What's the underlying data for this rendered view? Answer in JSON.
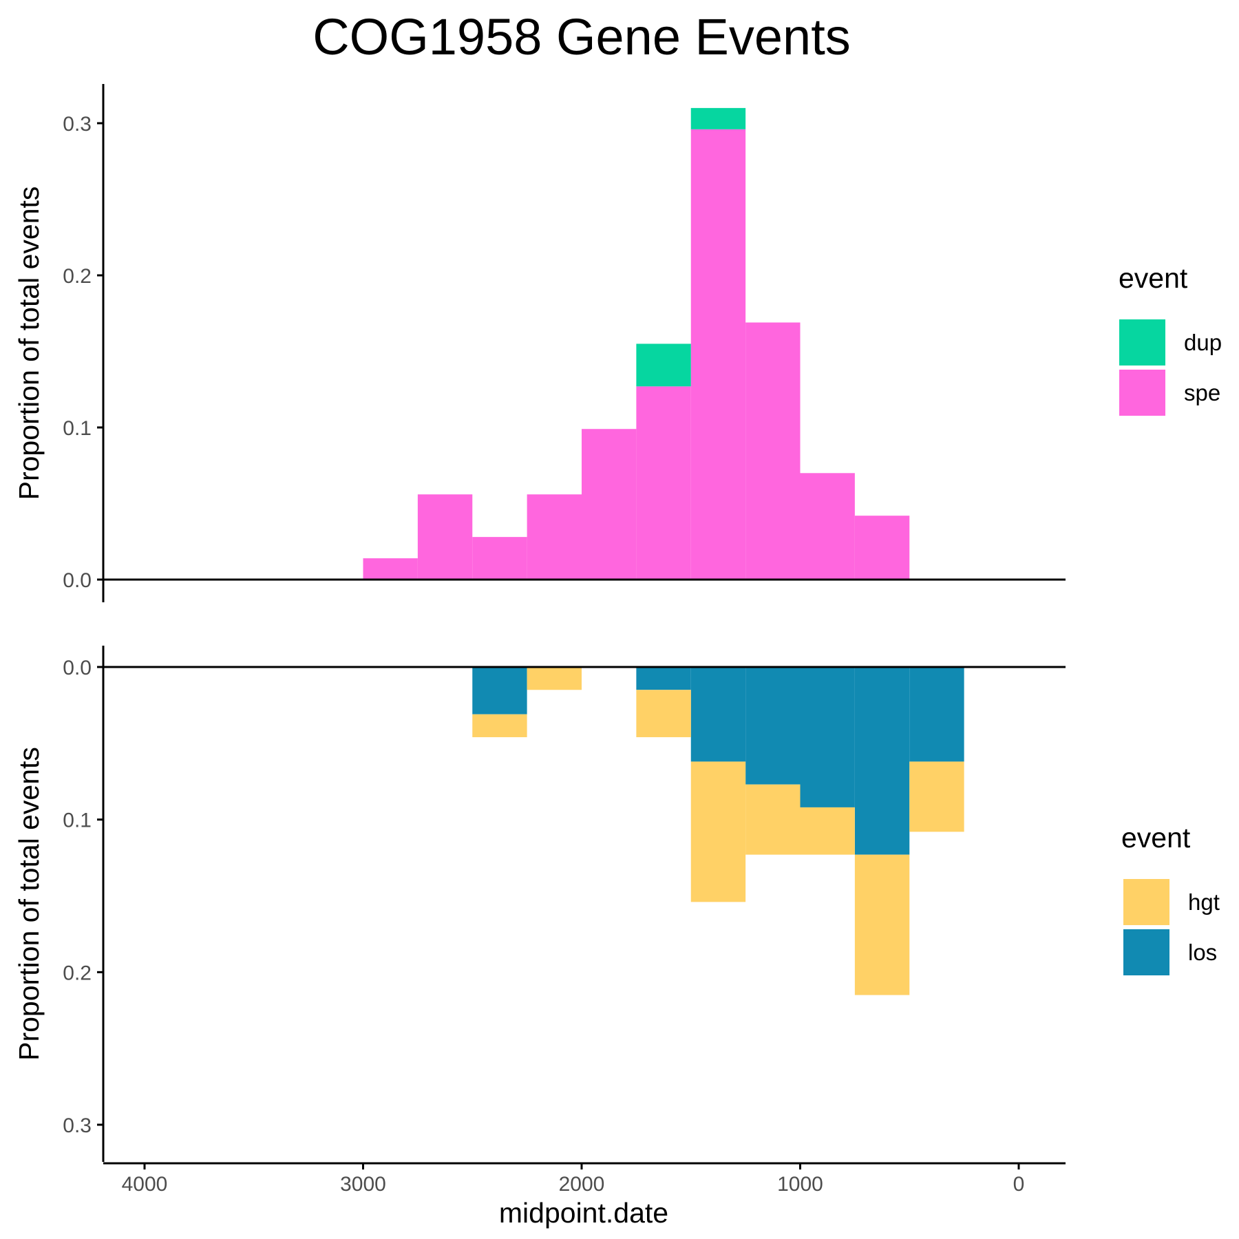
{
  "chart_data": {
    "type": "bar",
    "title": "COG1958 Gene Events",
    "xlabel": "midpoint.date",
    "x_reversed": true,
    "xlim": [
      4200,
      -200
    ],
    "x_ticks": [
      4000,
      3000,
      2000,
      1000,
      0
    ],
    "x_tick_labels": [
      "4000",
      "3000",
      "2000",
      "1000",
      "0"
    ],
    "bin_width": 250,
    "grid": false,
    "panels": [
      {
        "ylabel": "Proportion of total events",
        "ylim": [
          0,
          0.32
        ],
        "y_ticks": [
          0.0,
          0.1,
          0.2,
          0.3
        ],
        "y_tick_labels": [
          "0.0",
          "0.1",
          "0.2",
          "0.3"
        ],
        "direction": "up",
        "legend_title": "event",
        "legend_position": "right",
        "bins": [
          2875,
          2625,
          2375,
          2125,
          1875,
          1625,
          1375,
          1125,
          875,
          625
        ],
        "series": [
          {
            "name": "spe",
            "color": "#FF66DE",
            "values": [
              0.014,
              0.056,
              0.028,
              0.056,
              0.099,
              0.127,
              0.296,
              0.169,
              0.07,
              0.042
            ]
          },
          {
            "name": "dup",
            "color": "#06D6A0",
            "values": [
              0,
              0,
              0,
              0,
              0,
              0.028,
              0.014,
              0,
              0,
              0
            ]
          }
        ],
        "legend_order": [
          "dup",
          "spe"
        ]
      },
      {
        "ylabel": "Proportion of total events",
        "ylim": [
          0,
          0.32
        ],
        "y_ticks": [
          0.0,
          0.1,
          0.2,
          0.3
        ],
        "y_tick_labels": [
          "0.0",
          "0.1",
          "0.2",
          "0.3"
        ],
        "direction": "down",
        "legend_title": "event",
        "legend_position": "right",
        "bins": [
          2375,
          2125,
          1625,
          1375,
          1125,
          875,
          625,
          375
        ],
        "series": [
          {
            "name": "los",
            "color": "#118AB2",
            "values": [
              0.031,
              0,
              0.015,
              0.062,
              0.077,
              0.092,
              0.123,
              0.062
            ]
          },
          {
            "name": "hgt",
            "color": "#FFD166",
            "values": [
              0.015,
              0.015,
              0.031,
              0.092,
              0.046,
              0.031,
              0.092,
              0.046
            ]
          }
        ],
        "legend_order": [
          "hgt",
          "los"
        ]
      }
    ]
  }
}
